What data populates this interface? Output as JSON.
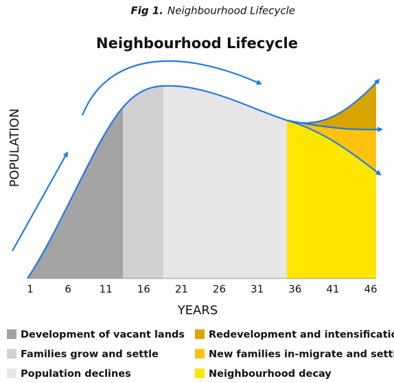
{
  "caption": {
    "label": "Fig 1.",
    "text": "Neighbourhood Lifecycle"
  },
  "title": "Neighbourhood Lifecycle",
  "y_label": "POPULATION",
  "x_label": "YEARS",
  "x_ticks": [
    "1",
    "6",
    "11",
    "16",
    "21",
    "26",
    "31",
    "36",
    "41",
    "46"
  ],
  "legend": [
    {
      "label": "Development of vacant lands",
      "color": "#a3a3a3"
    },
    {
      "label": "Families grow and settle",
      "color": "#d1d1d2"
    },
    {
      "label": "Population declines",
      "color": "#e6e6e7"
    },
    {
      "label": "Redevelopment and intensification",
      "color": "#d9a300"
    },
    {
      "label": "New families in-migrate and settle",
      "color": "#ffc20e"
    },
    {
      "label": "Neighbourhood decay",
      "color": "#ffe600"
    }
  ]
}
